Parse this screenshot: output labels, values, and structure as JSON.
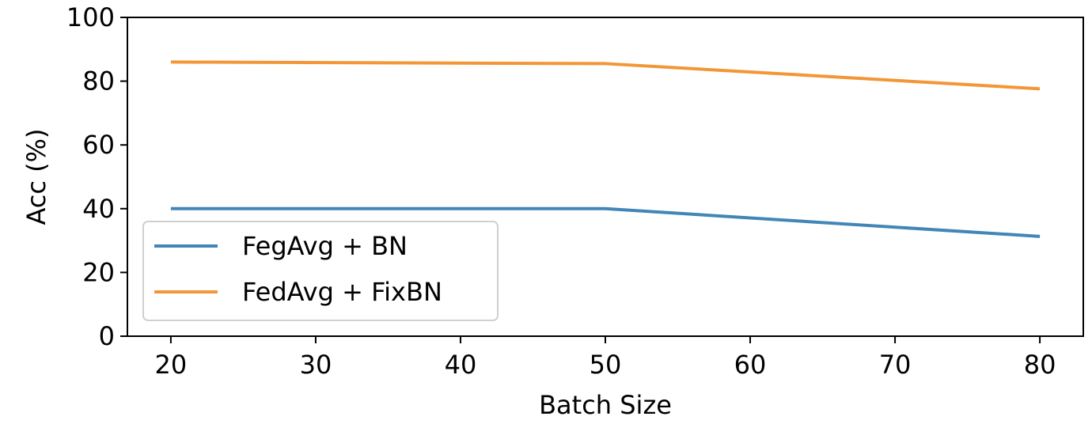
{
  "chart_data": {
    "type": "line",
    "title": "",
    "xlabel": "Batch Size",
    "ylabel": "Acc (%)",
    "x": [
      20,
      50,
      80
    ],
    "xlim": [
      17,
      83
    ],
    "ylim": [
      0,
      100
    ],
    "xticks": [
      20,
      30,
      40,
      50,
      60,
      70,
      80
    ],
    "yticks": [
      0,
      20,
      40,
      60,
      80,
      100
    ],
    "grid": false,
    "legend_position": "lower-left",
    "series": [
      {
        "name": "FegAvg + BN",
        "values": [
          40,
          40,
          31.3
        ],
        "color": "#4286b8"
      },
      {
        "name": "FedAvg + FixBN",
        "values": [
          86,
          85.5,
          77.6
        ],
        "color": "#f39635"
      }
    ]
  }
}
